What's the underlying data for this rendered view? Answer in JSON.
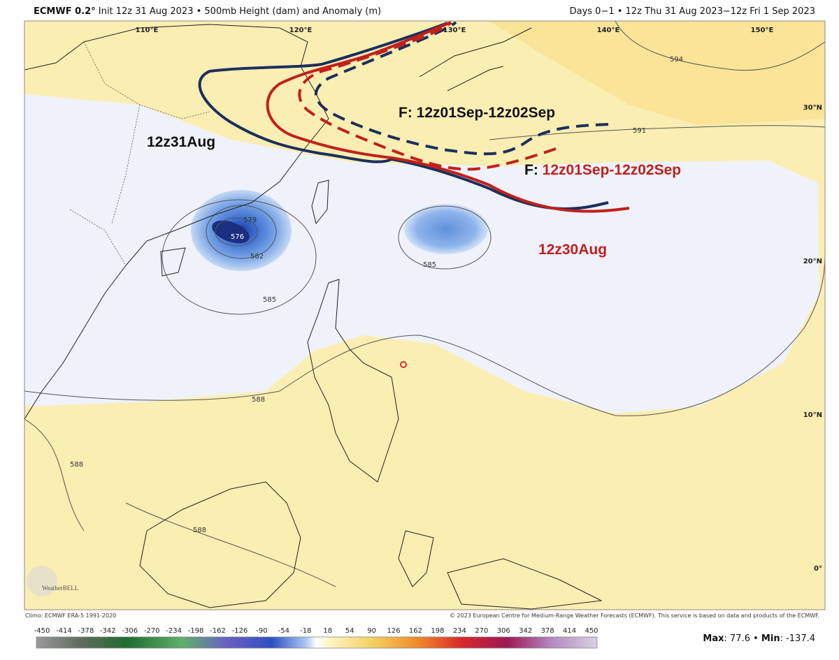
{
  "header": {
    "model": "ECMWF 0.2°",
    "description": "Init 12z 31 Aug 2023 • 500mb Height (dam) and Anomaly (m)",
    "valid": "Days 0−1 • 12z Thu 31 Aug 2023−12z Fri 1 Sep 2023"
  },
  "map": {
    "lon_labels": [
      "110°E",
      "120°E",
      "130°E",
      "140°E",
      "150°E"
    ],
    "lat_labels": [
      "30°N",
      "20°N",
      "10°N",
      "0°"
    ],
    "contour_labels": [
      "594",
      "591",
      "579",
      "576",
      "582",
      "585",
      "585",
      "588",
      "588",
      "588"
    ],
    "annotations": {
      "ec_31aug": "12z31Aug",
      "navy_forecast": "F: 12z01Sep-12z02Sep",
      "red_forecast_prefix": "F:",
      "red_forecast": "12z01Sep-12z02Sep",
      "ec_30aug": "12z30Aug"
    },
    "logo": "WeatherBELL"
  },
  "footer": {
    "climo": "Climo: ECMWF ERA-5 1991-2020",
    "copyright": "© 2023 European Centre for Medium-Range Weather Forecasts (ECMWF). This service is based on data and products of the ECMWF."
  },
  "colorbar": {
    "labels": [
      -450,
      -414,
      -378,
      -342,
      -306,
      -270,
      -234,
      -198,
      -162,
      -126,
      -90,
      -54,
      -18,
      18,
      54,
      90,
      126,
      162,
      198,
      234,
      270,
      306,
      342,
      378,
      414,
      450
    ]
  },
  "stats": {
    "max_label": "Max",
    "max_value": ": 77.6",
    "separator": " • ",
    "min_label": "Min",
    "min_value": ": -137.4"
  }
}
